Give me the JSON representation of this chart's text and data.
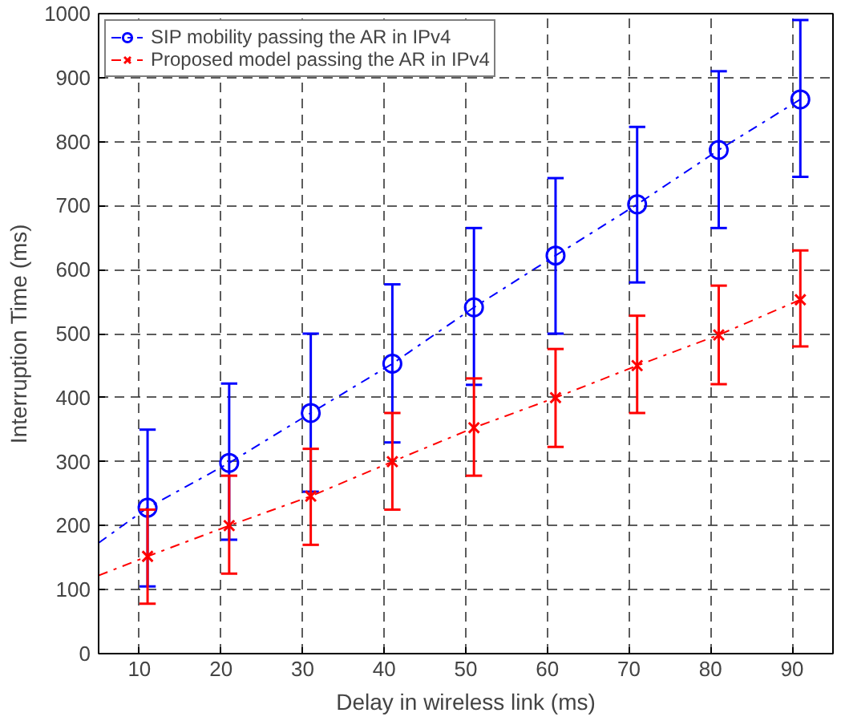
{
  "chart_data": {
    "type": "line",
    "xlabel": "Delay in wireless link (ms)",
    "ylabel": "Interruption Time (ms)",
    "xlim": [
      5,
      95
    ],
    "xticks": [
      10,
      20,
      30,
      40,
      50,
      60,
      70,
      80,
      90
    ],
    "ylim": [
      0,
      1000
    ],
    "yticks": [
      0,
      100,
      200,
      300,
      400,
      500,
      600,
      700,
      800,
      900,
      1000
    ],
    "grid": true,
    "legend": "top left",
    "line_style": "dashdot",
    "series": [
      {
        "name": "SIP mobility passing the AR in IPv4",
        "color": "#0000ff",
        "marker": "circle",
        "x": [
          5,
          11,
          21,
          31,
          41,
          51,
          61,
          71,
          81,
          91
        ],
        "values": [
          173,
          228,
          298,
          376,
          453,
          541,
          622,
          702,
          787,
          866
        ],
        "errors": [
          null,
          [
            105,
            350
          ],
          [
            178,
            422
          ],
          [
            253,
            500
          ],
          [
            330,
            577
          ],
          [
            420,
            665
          ],
          [
            500,
            743
          ],
          [
            580,
            823
          ],
          [
            665,
            910
          ],
          [
            745,
            990
          ]
        ]
      },
      {
        "name": "Proposed model passing the AR in IPv4",
        "color": "#ff0000",
        "marker": "cross",
        "x": [
          5,
          11,
          21,
          31,
          41,
          51,
          61,
          71,
          81,
          91
        ],
        "values": [
          122,
          152,
          200,
          246,
          300,
          353,
          400,
          450,
          498,
          553
        ],
        "errors": [
          null,
          [
            78,
            225
          ],
          [
            125,
            278
          ],
          [
            170,
            320
          ],
          [
            225,
            376
          ],
          [
            278,
            430
          ],
          [
            323,
            476
          ],
          [
            376,
            528
          ],
          [
            421,
            575
          ],
          [
            480,
            630
          ]
        ]
      }
    ]
  }
}
